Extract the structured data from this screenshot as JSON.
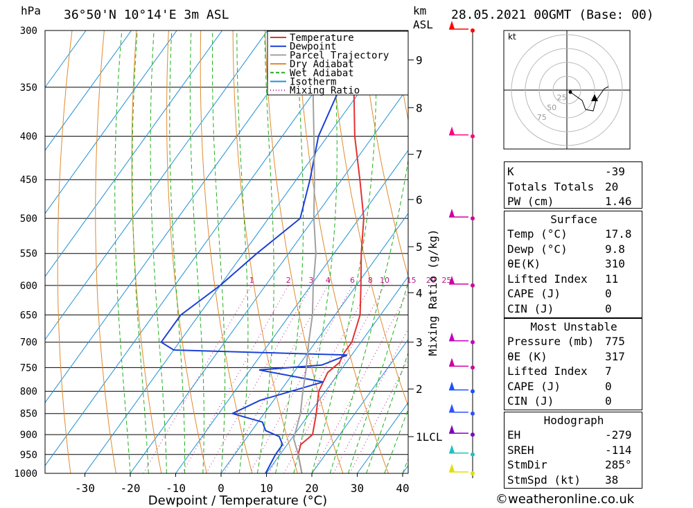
{
  "header": {
    "location": "36°50'N  10°14'E  3m  ASL",
    "datetime": "28.05.2021  00GMT  (Base: 00)",
    "pressure_unit": "hPa",
    "km_label": "km",
    "asl_label": "ASL"
  },
  "chart_data": {
    "type": "skew-t",
    "xlabel": "Dewpoint / Temperature (°C)",
    "ylabel_right": "Mixing Ratio (g/kg)",
    "x_ticks": [
      -30,
      -20,
      -10,
      0,
      10,
      20,
      30,
      40
    ],
    "pressure_levels": [
      300,
      350,
      400,
      450,
      500,
      550,
      600,
      650,
      700,
      750,
      800,
      850,
      900,
      950,
      1000
    ],
    "ylim_hpa": [
      1000,
      300
    ],
    "xlim_c": [
      -40,
      40
    ],
    "height_ticks_km": [
      "1LCL",
      "2",
      "3",
      "4",
      "5",
      "6",
      "7",
      "8",
      "9"
    ],
    "mixing_ratio_labels": [
      "1",
      "2",
      "3",
      "4",
      "6",
      "8",
      "10",
      "15",
      "20",
      "25"
    ],
    "legend": [
      "Temperature",
      "Dewpoint",
      "Parcel Trajectory",
      "Dry Adiabat",
      "Wet Adiabat",
      "Isotherm",
      "Mixing Ratio"
    ],
    "colors": {
      "temperature": "#e53030",
      "dewpoint": "#1a3fd6",
      "parcel": "#a0a0a0",
      "dry_adiabat": "#e08a2c",
      "wet_adiabat": "#19b019",
      "isotherm": "#1e90d8",
      "mixing_ratio": "#c0148c"
    },
    "series": [
      {
        "name": "Temperature",
        "points": [
          [
            1000,
            17.8
          ],
          [
            950,
            14
          ],
          [
            925,
            13
          ],
          [
            900,
            14
          ],
          [
            850,
            11.5
          ],
          [
            800,
            8.5
          ],
          [
            760,
            7.5
          ],
          [
            740,
            8.5
          ],
          [
            720,
            8
          ],
          [
            700,
            8
          ],
          [
            650,
            5.5
          ],
          [
            600,
            1
          ],
          [
            550,
            -4
          ],
          [
            500,
            -9
          ],
          [
            450,
            -16
          ],
          [
            400,
            -24
          ],
          [
            350,
            -32
          ],
          [
            300,
            -42
          ]
        ]
      },
      {
        "name": "Dewpoint",
        "points": [
          [
            1000,
            9.8
          ],
          [
            950,
            9
          ],
          [
            925,
            9
          ],
          [
            905,
            7
          ],
          [
            890,
            3
          ],
          [
            870,
            1
          ],
          [
            850,
            -7
          ],
          [
            820,
            -3
          ],
          [
            780,
            8
          ],
          [
            755,
            -8
          ],
          [
            745,
            5
          ],
          [
            725,
            9
          ],
          [
            715,
            -30
          ],
          [
            700,
            -34
          ],
          [
            650,
            -34
          ],
          [
            600,
            -30
          ],
          [
            550,
            -27
          ],
          [
            500,
            -23
          ],
          [
            450,
            -27
          ],
          [
            400,
            -32
          ],
          [
            350,
            -35
          ],
          [
            300,
            -38
          ]
        ]
      },
      {
        "name": "Parcel Trajectory",
        "points": [
          [
            1000,
            17.8
          ],
          [
            950,
            14
          ],
          [
            910,
            10.5
          ],
          [
            850,
            8
          ],
          [
            800,
            5
          ],
          [
            750,
            2
          ],
          [
            700,
            -1.5
          ],
          [
            650,
            -5
          ],
          [
            600,
            -9.5
          ],
          [
            550,
            -14
          ],
          [
            500,
            -20
          ],
          [
            450,
            -26
          ],
          [
            400,
            -33
          ],
          [
            350,
            -41
          ],
          [
            300,
            -51
          ]
        ]
      }
    ]
  },
  "wind_profile": {
    "levels": [
      {
        "label": "300",
        "color": "#ff0000"
      },
      {
        "label": "400",
        "color": "#ff0080"
      },
      {
        "label": "500",
        "color": "#d000a0"
      },
      {
        "label": "600",
        "color": "#d000a0"
      },
      {
        "label": "700",
        "color": "#c000c0"
      },
      {
        "label": "750",
        "color": "#d000a0"
      },
      {
        "label": "800",
        "color": "#1a50ff"
      },
      {
        "label": "850",
        "color": "#3050ff"
      },
      {
        "label": "900",
        "color": "#8000c0"
      },
      {
        "label": "950",
        "color": "#20c0c0"
      },
      {
        "label": "1000",
        "color": "#e0e000"
      }
    ]
  },
  "hodograph": {
    "unit": "kt",
    "rings": [
      "25",
      "50",
      "75"
    ]
  },
  "indices": {
    "general": [
      {
        "label": "K",
        "value": "-39"
      },
      {
        "label": "Totals Totals",
        "value": "20"
      },
      {
        "label": "PW (cm)",
        "value": "1.46"
      }
    ],
    "surface_title": "Surface",
    "surface": [
      {
        "label": "Temp (°C)",
        "value": "17.8"
      },
      {
        "label": "Dewp (°C)",
        "value": "9.8"
      },
      {
        "label": "θE(K)",
        "value": "310"
      },
      {
        "label": "Lifted Index",
        "value": "11"
      },
      {
        "label": "CAPE (J)",
        "value": "0"
      },
      {
        "label": "CIN (J)",
        "value": "0"
      }
    ],
    "unstable_title": "Most Unstable",
    "unstable": [
      {
        "label": "Pressure (mb)",
        "value": "775"
      },
      {
        "label": "θE (K)",
        "value": "317"
      },
      {
        "label": "Lifted Index",
        "value": "7"
      },
      {
        "label": "CAPE (J)",
        "value": "0"
      },
      {
        "label": "CIN (J)",
        "value": "0"
      }
    ],
    "hodograph_title": "Hodograph",
    "hodo": [
      {
        "label": "EH",
        "value": "-279"
      },
      {
        "label": "SREH",
        "value": "-114"
      },
      {
        "label": "StmDir",
        "value": "285°"
      },
      {
        "label": "StmSpd (kt)",
        "value": "38"
      }
    ]
  },
  "footer": {
    "copyright": "©weatheronline.co.uk"
  }
}
